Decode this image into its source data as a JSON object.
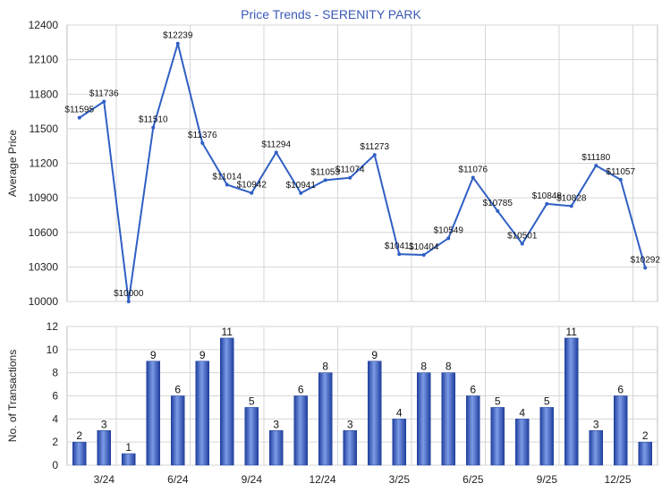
{
  "title": "Price Trends - SERENITY PARK",
  "chart_data": [
    {
      "type": "line",
      "ylabel": "Average Price",
      "ylim": [
        10000,
        12400
      ],
      "yticks": [
        10000,
        10300,
        10600,
        10900,
        11200,
        11500,
        11800,
        12100,
        12400
      ],
      "series": [
        {
          "values": [
            11595,
            11736,
            10000,
            11510,
            12239,
            11376,
            11014,
            10942,
            11294,
            10941,
            11053,
            11074,
            11273,
            10411,
            10404,
            10549,
            11076,
            10785,
            10501,
            10848,
            10828,
            11180,
            11057,
            10292
          ],
          "labels": [
            "$11595",
            "$11736",
            "$10000",
            "$11510",
            "$12239",
            "$11376",
            "$11014",
            "$10942",
            "$11294",
            "$10941",
            "$11053",
            "$11074",
            "$11273",
            "$10411",
            "$10404",
            "$10549",
            "$11076",
            "$10785",
            "$10501",
            "$10848",
            "$10828",
            "$11180",
            "$11057",
            "$10292"
          ]
        }
      ],
      "grid": true,
      "color": "#2f5fc4"
    },
    {
      "type": "bar",
      "ylabel": "No. of Transactions",
      "ylim": [
        0,
        12
      ],
      "yticks": [
        0,
        2,
        4,
        6,
        8,
        10,
        12
      ],
      "values": [
        2,
        3,
        1,
        9,
        6,
        9,
        11,
        5,
        3,
        6,
        8,
        3,
        9,
        4,
        8,
        8,
        6,
        5,
        4,
        5,
        11,
        3,
        6,
        2
      ],
      "grid": true,
      "color": "#3a62c8"
    }
  ],
  "x_axis": {
    "tick_labels": [
      "3/24",
      "6/24",
      "9/24",
      "12/24",
      "3/25",
      "6/25",
      "9/25",
      "12/25"
    ],
    "tick_positions": [
      2,
      5,
      8,
      11,
      14,
      17,
      20,
      23
    ]
  }
}
